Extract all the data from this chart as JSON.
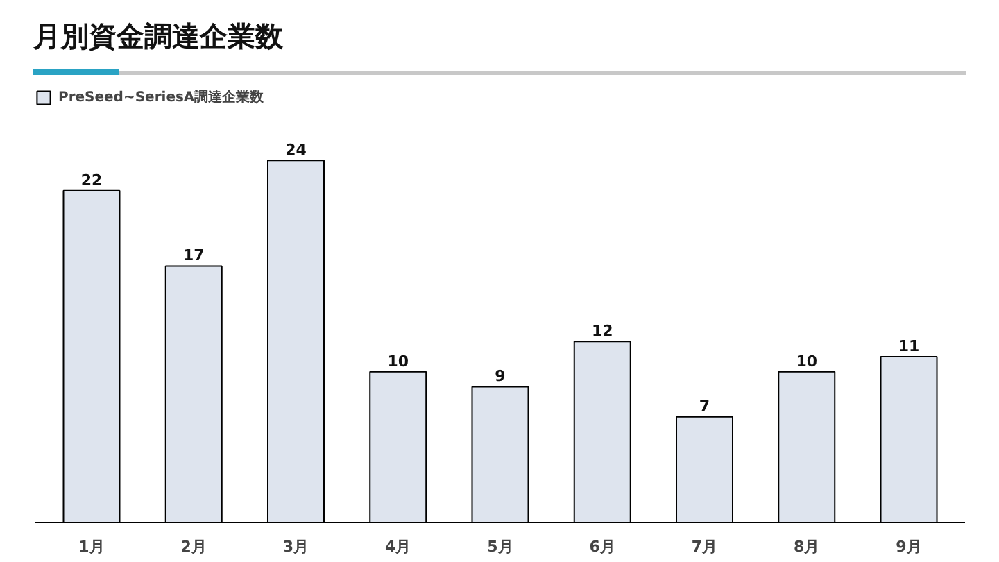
{
  "chart_data": {
    "type": "bar",
    "title": "月別資金調達企業数",
    "categories": [
      "1月",
      "2月",
      "3月",
      "4月",
      "5月",
      "6月",
      "7月",
      "8月",
      "9月"
    ],
    "series": [
      {
        "name": "PreSeed~SeriesA調達企業数",
        "color": "#dee4ee",
        "values": [
          22,
          17,
          24,
          10,
          9,
          12,
          7,
          10,
          11
        ]
      }
    ],
    "data_labels": true,
    "legend": "top left",
    "grid": false,
    "tick_labels": "x"
  }
}
